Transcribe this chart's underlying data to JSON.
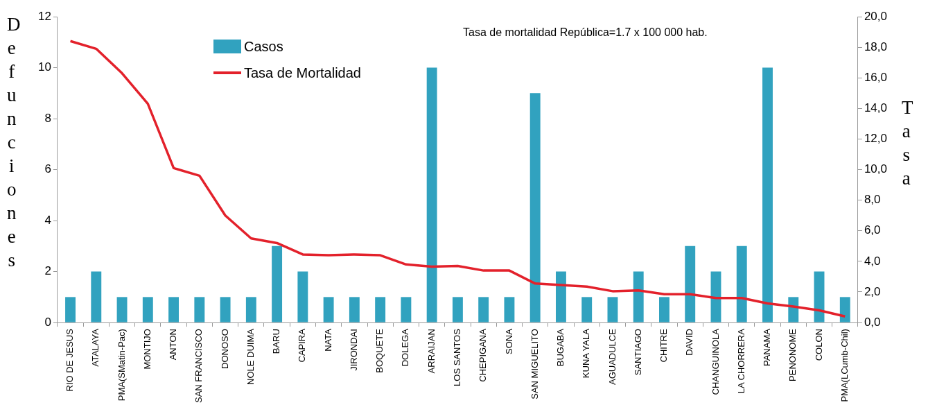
{
  "chart_data": {
    "type": "bar",
    "ylabel": "Defunciones",
    "y2label": "Tasa",
    "annotations": [
      "Tasa de mortalidad República=1.7 x 100 000 hab."
    ],
    "categories": [
      "RIO DE JESUS",
      "ATALAYA",
      "PMA(SMatin-Pac)",
      "MONTIJO",
      "ANTON",
      "SAN FRANCISCO",
      "DONOSO",
      "NOLE DUIMA",
      "BARU",
      "CAPIRA",
      "NATA",
      "JIRONDAI",
      "BOQUETE",
      "DOLEGA",
      "ARRAIJAN",
      "LOS SANTOS",
      "CHEPIGANA",
      "SONA",
      "SAN MIGUELITO",
      "BUGABA",
      "KUNA YALA",
      "AGUADULCE",
      "SANTIAGO",
      "CHITRE",
      "DAVID",
      "CHANGUINOLA",
      "LA CHORRERA",
      "PANAMA",
      "PENONOME",
      "COLON",
      "PMA(LCumb-Chil)"
    ],
    "series": [
      {
        "name": "Casos",
        "color": "#31a2bf",
        "values": [
          1,
          2,
          1,
          1,
          1,
          1,
          1,
          1,
          3,
          2,
          1,
          1,
          1,
          1,
          10,
          1,
          1,
          1,
          9,
          2,
          1,
          1,
          2,
          1,
          3,
          2,
          3,
          10,
          1,
          2,
          1
        ]
      },
      {
        "name": "Tasa de Mortalidad",
        "type": "line",
        "axis": "y2",
        "color": "#e3212b",
        "values": [
          18.4,
          17.9,
          16.3,
          14.3,
          10.1,
          9.6,
          7.0,
          5.5,
          5.2,
          4.45,
          4.4,
          4.45,
          4.4,
          3.8,
          3.65,
          3.7,
          3.4,
          3.4,
          2.55,
          2.45,
          2.35,
          2.05,
          2.1,
          1.85,
          1.85,
          1.6,
          1.6,
          1.25,
          1.05,
          0.8,
          0.4
        ]
      }
    ],
    "ylim": [
      0,
      12
    ],
    "yticks": [
      0,
      2,
      4,
      6,
      8,
      10,
      12
    ],
    "y2lim": [
      0,
      20
    ],
    "y2ticks": [
      {
        "value": 0,
        "label": "0,0"
      },
      {
        "value": 2,
        "label": "2,0"
      },
      {
        "value": 4,
        "label": "4,0"
      },
      {
        "value": 6,
        "label": "6,0"
      },
      {
        "value": 8,
        "label": "8,0"
      },
      {
        "value": 10,
        "label": "10,0"
      },
      {
        "value": 12,
        "label": "12,0"
      },
      {
        "value": 14,
        "label": "14,0"
      },
      {
        "value": 16,
        "label": "16,0"
      },
      {
        "value": 18,
        "label": "18,0"
      },
      {
        "value": 20,
        "label": "20,0"
      }
    ],
    "grid": false,
    "legend": "top left",
    "marker": "none",
    "line_style": "solid"
  }
}
